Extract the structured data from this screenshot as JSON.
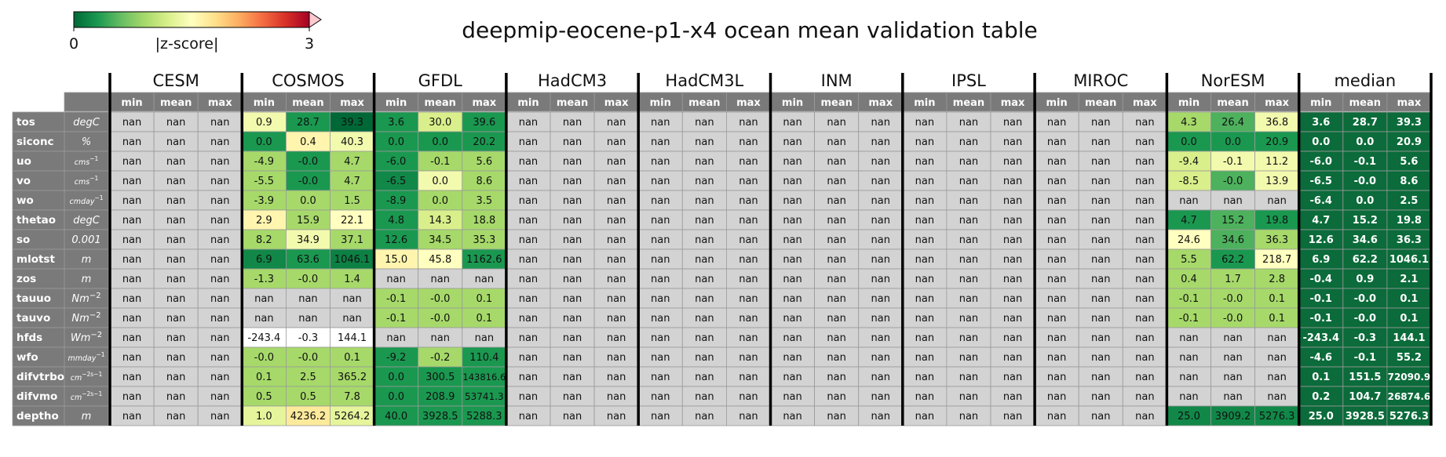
{
  "title": "deepmip-eocene-p1-x4 ocean mean validation table",
  "colorbar": {
    "label": "|z-score|",
    "tick_min": "0",
    "tick_max": "3",
    "min": 0,
    "max": 3,
    "extend": "max",
    "colormap": "RdYlGn_r",
    "stops": [
      "#006837",
      "#1a9850",
      "#66bd63",
      "#a6d96a",
      "#d9ef8b",
      "#ffffbf",
      "#fee08b",
      "#fdae61",
      "#f46d43",
      "#d73027",
      "#a50026"
    ],
    "extend_color": "#ffc9cf",
    "nan_color": "#d3d3d3",
    "header_color": "#7a7a7a"
  },
  "chart_data": {
    "type": "table",
    "models": [
      "CESM",
      "COSMOS",
      "GFDL",
      "HadCM3",
      "HadCM3L",
      "INM",
      "IPSL",
      "MIROC",
      "NorESM",
      "median"
    ],
    "stats": [
      "min",
      "mean",
      "max"
    ],
    "variables": [
      "tos",
      "siconc",
      "uo",
      "vo",
      "wo",
      "thetao",
      "so",
      "mlotst",
      "zos",
      "tauuo",
      "tauvo",
      "hfds",
      "wfo",
      "difvtrbo",
      "difvmo",
      "deptho"
    ],
    "units": [
      {
        "base": "degC",
        "sup": "",
        "small": false
      },
      {
        "base": "%",
        "sup": "",
        "small": false
      },
      {
        "base": "cms",
        "sup": "−1",
        "small": true
      },
      {
        "base": "cms",
        "sup": "−1",
        "small": true
      },
      {
        "base": "cmday",
        "sup": "−1",
        "small": true
      },
      {
        "base": "degC",
        "sup": "",
        "small": false
      },
      {
        "base": "0.001",
        "sup": "",
        "small": false
      },
      {
        "base": "m",
        "sup": "",
        "small": false
      },
      {
        "base": "m",
        "sup": "",
        "small": false
      },
      {
        "base": "Nm",
        "sup": "−2",
        "small": false
      },
      {
        "base": "Nm",
        "sup": "−2",
        "small": false
      },
      {
        "base": "Wm",
        "sup": "−2",
        "small": false
      },
      {
        "base": "mmday",
        "sup": "−1",
        "small": true
      },
      {
        "base": "cm",
        "sup": "−2s−1",
        "small": true
      },
      {
        "base": "cm",
        "sup": "−2s−1",
        "small": true
      },
      {
        "base": "m",
        "sup": "",
        "small": false
      }
    ],
    "values": {
      "COSMOS": [
        [
          "0.9",
          "28.7",
          "39.3"
        ],
        [
          "0.0",
          "0.4",
          "40.3"
        ],
        [
          "-4.9",
          "-0.0",
          "4.7"
        ],
        [
          "-5.5",
          "-0.0",
          "4.7"
        ],
        [
          "-3.9",
          "0.0",
          "1.5"
        ],
        [
          "2.9",
          "15.9",
          "22.1"
        ],
        [
          "8.2",
          "34.9",
          "37.1"
        ],
        [
          "6.9",
          "63.6",
          "1046.1"
        ],
        [
          "-1.3",
          "-0.0",
          "1.4"
        ],
        [
          "nan",
          "nan",
          "nan"
        ],
        [
          "nan",
          "nan",
          "nan"
        ],
        [
          "-243.4",
          "-0.3",
          "144.1"
        ],
        [
          "-0.0",
          "-0.0",
          "0.1"
        ],
        [
          "0.1",
          "2.5",
          "365.2"
        ],
        [
          "0.5",
          "0.5",
          "7.8"
        ],
        [
          "1.0",
          "4236.2",
          "5264.2"
        ]
      ],
      "GFDL": [
        [
          "3.6",
          "30.0",
          "39.6"
        ],
        [
          "0.0",
          "0.0",
          "20.2"
        ],
        [
          "-6.0",
          "-0.1",
          "5.6"
        ],
        [
          "-6.5",
          "0.0",
          "8.6"
        ],
        [
          "-8.9",
          "0.0",
          "3.5"
        ],
        [
          "4.8",
          "14.3",
          "18.8"
        ],
        [
          "12.6",
          "34.5",
          "35.3"
        ],
        [
          "15.0",
          "45.8",
          "1162.6"
        ],
        [
          "nan",
          "nan",
          "nan"
        ],
        [
          "-0.1",
          "-0.0",
          "0.1"
        ],
        [
          "-0.1",
          "-0.0",
          "0.1"
        ],
        [
          "nan",
          "nan",
          "nan"
        ],
        [
          "-9.2",
          "-0.2",
          "110.4"
        ],
        [
          "0.0",
          "300.5",
          "143816.6"
        ],
        [
          "0.0",
          "208.9",
          "53741.3"
        ],
        [
          "40.0",
          "3928.5",
          "5288.3"
        ]
      ],
      "NorESM": [
        [
          "4.3",
          "26.4",
          "36.8"
        ],
        [
          "0.0",
          "0.0",
          "20.9"
        ],
        [
          "-9.4",
          "-0.1",
          "11.2"
        ],
        [
          "-8.5",
          "-0.0",
          "13.9"
        ],
        [
          "nan",
          "nan",
          "nan"
        ],
        [
          "4.7",
          "15.2",
          "19.8"
        ],
        [
          "24.6",
          "34.6",
          "36.3"
        ],
        [
          "5.5",
          "62.2",
          "218.7"
        ],
        [
          "0.4",
          "1.7",
          "2.8"
        ],
        [
          "-0.1",
          "-0.0",
          "0.1"
        ],
        [
          "-0.1",
          "-0.0",
          "0.1"
        ],
        [
          "nan",
          "nan",
          "nan"
        ],
        [
          "nan",
          "nan",
          "nan"
        ],
        [
          "nan",
          "nan",
          "nan"
        ],
        [
          "nan",
          "nan",
          "nan"
        ],
        [
          "25.0",
          "3909.2",
          "5276.3"
        ]
      ],
      "median": [
        [
          "3.6",
          "28.7",
          "39.3"
        ],
        [
          "0.0",
          "0.0",
          "20.9"
        ],
        [
          "-6.0",
          "-0.1",
          "5.6"
        ],
        [
          "-6.5",
          "-0.0",
          "8.6"
        ],
        [
          "-6.4",
          "0.0",
          "2.5"
        ],
        [
          "4.7",
          "15.2",
          "19.8"
        ],
        [
          "12.6",
          "34.6",
          "36.3"
        ],
        [
          "6.9",
          "62.2",
          "1046.1"
        ],
        [
          "-0.4",
          "0.9",
          "2.1"
        ],
        [
          "-0.1",
          "-0.0",
          "0.1"
        ],
        [
          "-0.1",
          "-0.0",
          "0.1"
        ],
        [
          "-243.4",
          "-0.3",
          "144.1"
        ],
        [
          "-4.6",
          "-0.1",
          "55.2"
        ],
        [
          "0.1",
          "151.5",
          "72090.9"
        ],
        [
          "0.2",
          "104.7",
          "26874.6"
        ],
        [
          "25.0",
          "3928.5",
          "5276.3"
        ]
      ]
    },
    "default_value": "nan",
    "zscores": {
      "COSMOS": [
        [
          1.4,
          0.3,
          0.0
        ],
        [
          0.3,
          1.6,
          1.4
        ],
        [
          0.9,
          0.3,
          0.9
        ],
        [
          0.9,
          0.3,
          0.9
        ],
        [
          0.9,
          0.9,
          0.9
        ],
        [
          1.6,
          0.9,
          1.5
        ],
        [
          0.9,
          1.4,
          0.9
        ],
        [
          0.2,
          0.3,
          0.15
        ],
        [
          0.9,
          0.9,
          0.9
        ],
        [
          null,
          null,
          null
        ],
        [
          null,
          null,
          null
        ],
        [
          -1,
          -1,
          -1
        ],
        [
          0.9,
          0.9,
          0.9
        ],
        [
          0.9,
          0.9,
          0.9
        ],
        [
          0.9,
          0.9,
          0.9
        ],
        [
          1.3,
          1.7,
          1.3
        ]
      ],
      "GFDL": [
        [
          0.3,
          1.2,
          0.3
        ],
        [
          0.3,
          0.3,
          0.3
        ],
        [
          0.3,
          0.9,
          0.9
        ],
        [
          0.2,
          1.4,
          0.9
        ],
        [
          0.3,
          0.9,
          0.9
        ],
        [
          0.3,
          1.2,
          0.9
        ],
        [
          0.3,
          0.9,
          0.9
        ],
        [
          1.6,
          1.5,
          0.3
        ],
        [
          null,
          null,
          null
        ],
        [
          0.9,
          0.9,
          0.9
        ],
        [
          0.9,
          0.9,
          0.9
        ],
        [
          null,
          null,
          null
        ],
        [
          0.3,
          0.9,
          0.3
        ],
        [
          0.3,
          0.3,
          0.3
        ],
        [
          0.3,
          0.3,
          0.3
        ],
        [
          0.3,
          0.3,
          0.3
        ]
      ],
      "NorESM": [
        [
          0.9,
          0.5,
          1.4
        ],
        [
          0.3,
          0.3,
          0.3
        ],
        [
          1.2,
          1.4,
          1.4
        ],
        [
          1.2,
          0.5,
          1.4
        ],
        [
          null,
          null,
          null
        ],
        [
          0.3,
          0.5,
          0.3
        ],
        [
          1.5,
          0.5,
          0.9
        ],
        [
          0.9,
          0.3,
          1.5
        ],
        [
          0.9,
          0.9,
          0.9
        ],
        [
          0.9,
          0.9,
          0.9
        ],
        [
          0.9,
          0.9,
          0.9
        ],
        [
          null,
          null,
          null
        ],
        [
          null,
          null,
          null
        ],
        [
          null,
          null,
          null
        ],
        [
          null,
          null,
          null
        ],
        [
          0.2,
          0.2,
          0.2
        ]
      ]
    },
    "median_color": "#0b6b3a"
  }
}
